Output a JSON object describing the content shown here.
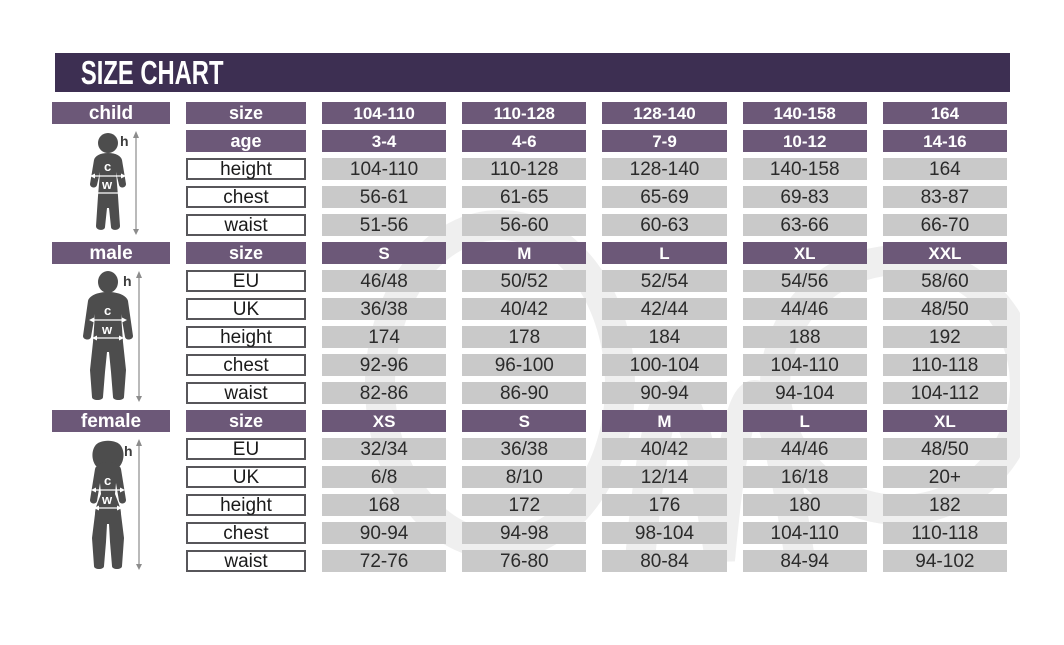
{
  "title": "SIZE CHART",
  "figure_labels": {
    "height": "h",
    "chest": "c",
    "waist": "w"
  },
  "colors": {
    "title_bar": "#3d2f52",
    "header_cell": "#6c5878",
    "data_cell": "#c9c9c9",
    "label_border": "#57565a",
    "figure_silhouette": "#4d4d4d"
  },
  "sections": [
    {
      "id": "child",
      "label": "child",
      "rows": [
        {
          "label": "size",
          "type": "header",
          "values": [
            "104-110",
            "110-128",
            "128-140",
            "140-158",
            "164"
          ]
        },
        {
          "label": "age",
          "type": "header",
          "values": [
            "3-4",
            "4-6",
            "7-9",
            "10-12",
            "14-16"
          ]
        },
        {
          "label": "height",
          "type": "plain",
          "values": [
            "104-110",
            "110-128",
            "128-140",
            "140-158",
            "164"
          ]
        },
        {
          "label": "chest",
          "type": "plain",
          "values": [
            "56-61",
            "61-65",
            "65-69",
            "69-83",
            "83-87"
          ]
        },
        {
          "label": "waist",
          "type": "plain",
          "values": [
            "51-56",
            "56-60",
            "60-63",
            "63-66",
            "66-70"
          ]
        }
      ]
    },
    {
      "id": "male",
      "label": "male",
      "rows": [
        {
          "label": "size",
          "type": "header",
          "values": [
            "S",
            "M",
            "L",
            "XL",
            "XXL"
          ]
        },
        {
          "label": "EU",
          "type": "plain",
          "values": [
            "46/48",
            "50/52",
            "52/54",
            "54/56",
            "58/60"
          ]
        },
        {
          "label": "UK",
          "type": "plain",
          "values": [
            "36/38",
            "40/42",
            "42/44",
            "44/46",
            "48/50"
          ]
        },
        {
          "label": "height",
          "type": "plain",
          "values": [
            "174",
            "178",
            "184",
            "188",
            "192"
          ]
        },
        {
          "label": "chest",
          "type": "plain",
          "values": [
            "92-96",
            "96-100",
            "100-104",
            "104-110",
            "110-118"
          ]
        },
        {
          "label": "waist",
          "type": "plain",
          "values": [
            "82-86",
            "86-90",
            "90-94",
            "94-104",
            "104-112"
          ]
        }
      ]
    },
    {
      "id": "female",
      "label": "female",
      "rows": [
        {
          "label": "size",
          "type": "header",
          "values": [
            "XS",
            "S",
            "M",
            "L",
            "XL"
          ]
        },
        {
          "label": "EU",
          "type": "plain",
          "values": [
            "32/34",
            "36/38",
            "40/42",
            "44/46",
            "48/50"
          ]
        },
        {
          "label": "UK",
          "type": "plain",
          "values": [
            "6/8",
            "8/10",
            "12/14",
            "16/18",
            "20+"
          ]
        },
        {
          "label": "height",
          "type": "plain",
          "values": [
            "168",
            "172",
            "176",
            "180",
            "182"
          ]
        },
        {
          "label": "chest",
          "type": "plain",
          "values": [
            "90-94",
            "94-98",
            "98-104",
            "104-110",
            "110-118"
          ]
        },
        {
          "label": "waist",
          "type": "plain",
          "values": [
            "72-76",
            "76-80",
            "80-84",
            "84-94",
            "94-102"
          ]
        }
      ]
    }
  ],
  "chart_data": [
    {
      "type": "table",
      "title": "child",
      "row_labels": [
        "size",
        "age",
        "height",
        "chest",
        "waist"
      ],
      "rows": [
        [
          "104-110",
          "110-128",
          "128-140",
          "140-158",
          "164"
        ],
        [
          "3-4",
          "4-6",
          "7-9",
          "10-12",
          "14-16"
        ],
        [
          "104-110",
          "110-128",
          "128-140",
          "140-158",
          "164"
        ],
        [
          "56-61",
          "61-65",
          "65-69",
          "69-83",
          "83-87"
        ],
        [
          "51-56",
          "56-60",
          "60-63",
          "63-66",
          "66-70"
        ]
      ]
    },
    {
      "type": "table",
      "title": "male",
      "row_labels": [
        "size",
        "EU",
        "UK",
        "height",
        "chest",
        "waist"
      ],
      "rows": [
        [
          "S",
          "M",
          "L",
          "XL",
          "XXL"
        ],
        [
          "46/48",
          "50/52",
          "52/54",
          "54/56",
          "58/60"
        ],
        [
          "36/38",
          "40/42",
          "42/44",
          "44/46",
          "48/50"
        ],
        [
          "174",
          "178",
          "184",
          "188",
          "192"
        ],
        [
          "92-96",
          "96-100",
          "100-104",
          "104-110",
          "110-118"
        ],
        [
          "82-86",
          "86-90",
          "90-94",
          "94-104",
          "104-112"
        ]
      ]
    },
    {
      "type": "table",
      "title": "female",
      "row_labels": [
        "size",
        "EU",
        "UK",
        "height",
        "chest",
        "waist"
      ],
      "rows": [
        [
          "XS",
          "S",
          "M",
          "L",
          "XL"
        ],
        [
          "32/34",
          "36/38",
          "40/42",
          "44/46",
          "48/50"
        ],
        [
          "6/8",
          "8/10",
          "12/14",
          "16/18",
          "20+"
        ],
        [
          "168",
          "172",
          "176",
          "180",
          "182"
        ],
        [
          "90-94",
          "94-98",
          "98-104",
          "104-110",
          "110-118"
        ],
        [
          "72-76",
          "76-80",
          "80-84",
          "84-94",
          "94-102"
        ]
      ]
    }
  ]
}
